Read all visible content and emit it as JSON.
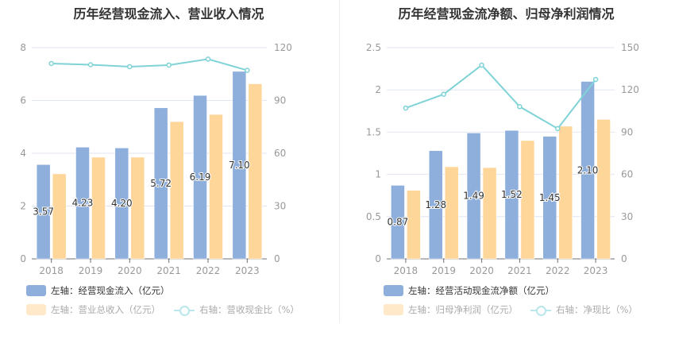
{
  "colors": {
    "bar_primary": "#8eaedb",
    "bar_secondary": "#ffd699",
    "line": "#7fd3d6",
    "legend_primary": "#8eaedb",
    "legend_secondary_faded": "#ffe9c9",
    "legend_line_faded": "#b9e7ea",
    "grid": "#e0e6f1",
    "axis": "#6e7079"
  },
  "chart_data": [
    {
      "type": "bar",
      "title": "历年经营现金流入、营业收入情况",
      "categories": [
        "2018",
        "2019",
        "2020",
        "2021",
        "2022",
        "2023"
      ],
      "left_axis": {
        "ticks": [
          "0",
          "2",
          "4",
          "6",
          "8"
        ],
        "range": [
          0,
          8
        ]
      },
      "right_axis": {
        "ticks": [
          "0",
          "30",
          "60",
          "90",
          "120"
        ],
        "range": [
          0,
          120
        ]
      },
      "grid": true,
      "legend_placement": "bottom-left",
      "series": [
        {
          "name": "左轴：经营现金流入（亿元）",
          "type": "bar",
          "axis": "left",
          "values": [
            3.57,
            4.23,
            4.2,
            5.72,
            6.19,
            7.1
          ],
          "labels": [
            "3.57",
            "4.23",
            "4.20",
            "5.72",
            "6.19",
            "7.10"
          ]
        },
        {
          "name": "左轴：营业总收入（亿元）",
          "type": "bar",
          "axis": "left",
          "values": [
            3.22,
            3.85,
            3.85,
            5.2,
            5.47,
            6.63
          ]
        },
        {
          "name": "右轴：营收现金比（%）",
          "type": "line",
          "axis": "right",
          "values": [
            111.0,
            110.3,
            109.2,
            110.1,
            113.5,
            107.1
          ]
        }
      ]
    },
    {
      "type": "bar",
      "title": "历年经营现金流净额、归母净利润情况",
      "categories": [
        "2018",
        "2019",
        "2020",
        "2021",
        "2022",
        "2023"
      ],
      "left_axis": {
        "ticks": [
          "0",
          "0.5",
          "1",
          "1.5",
          "2",
          "2.5"
        ],
        "range": [
          0,
          2.5
        ]
      },
      "right_axis": {
        "ticks": [
          "0",
          "30",
          "60",
          "90",
          "120",
          "150"
        ],
        "range": [
          0,
          150
        ]
      },
      "grid": true,
      "legend_placement": "bottom-left",
      "series": [
        {
          "name": "左轴：经营活动现金流净额（亿元）",
          "type": "bar",
          "axis": "left",
          "values": [
            0.87,
            1.28,
            1.49,
            1.52,
            1.45,
            2.1
          ],
          "labels": [
            "0.87",
            "1.28",
            "1.49",
            "1.52",
            "1.45",
            "2.10"
          ]
        },
        {
          "name": "左轴：归母净利润（亿元）",
          "type": "bar",
          "axis": "left",
          "values": [
            0.81,
            1.09,
            1.08,
            1.4,
            1.57,
            1.65
          ]
        },
        {
          "name": "右轴：净现比（%）",
          "type": "line",
          "axis": "right",
          "values": [
            107.1,
            116.9,
            137.6,
            108.1,
            92.5,
            127.4
          ]
        }
      ]
    }
  ]
}
